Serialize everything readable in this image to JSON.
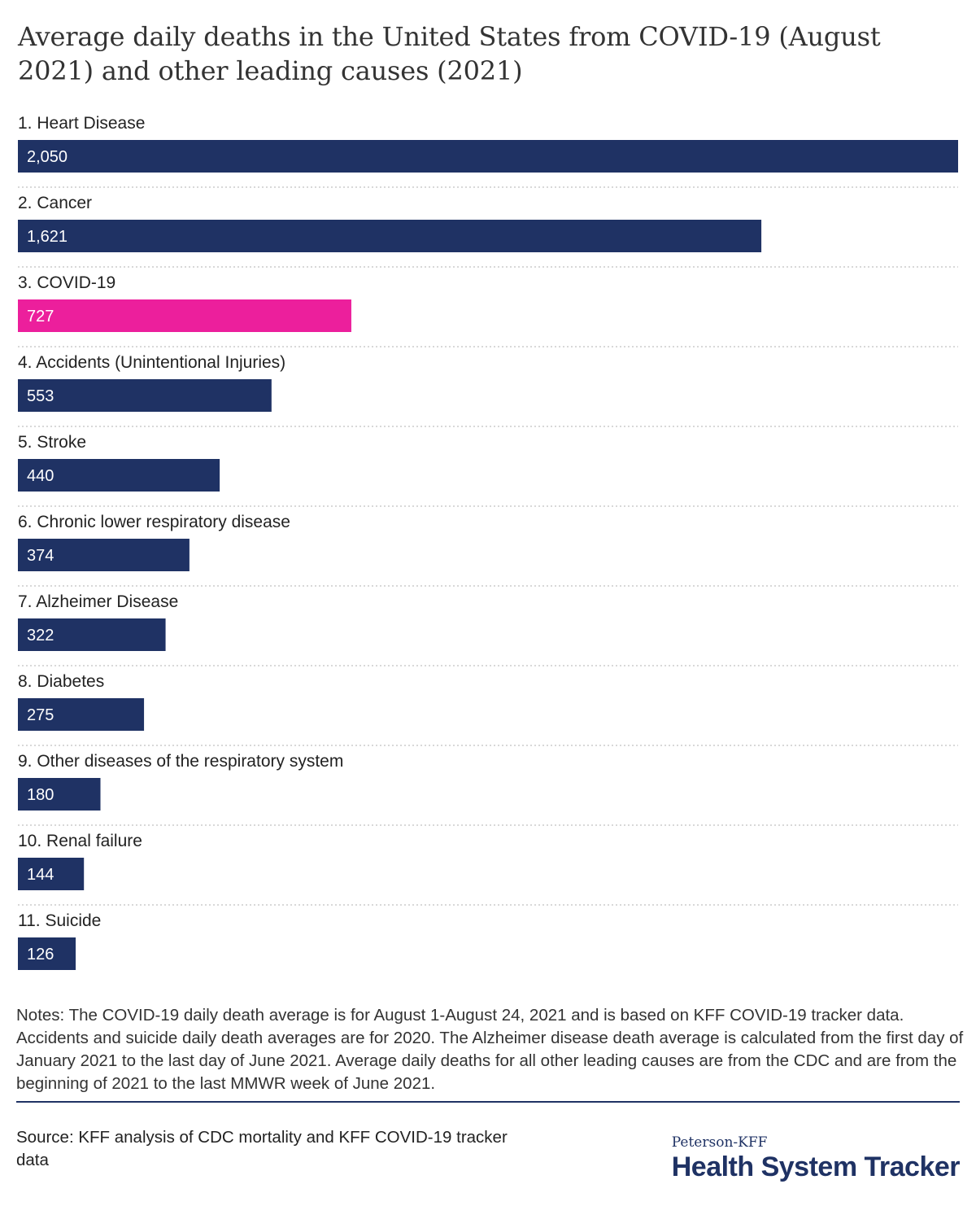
{
  "title": "Average daily deaths in the United States from COVID-19 (August 2021) and other leading causes (2021)",
  "chart_data": {
    "type": "bar",
    "orientation": "horizontal",
    "title": "Average daily deaths in the United States from COVID-19 (August 2021) and other leading causes (2021)",
    "xlabel": "",
    "ylabel": "",
    "xlim": [
      0,
      2050
    ],
    "grid": false,
    "categories": [
      "1. Heart Disease",
      "2. Cancer",
      "3. COVID-19",
      "4. Accidents (Unintentional Injuries)",
      "5. Stroke",
      "6. Chronic lower respiratory disease",
      "7. Alzheimer Disease",
      "8. Diabetes",
      "9. Other diseases of the respiratory system",
      "10. Renal failure",
      "11. Suicide"
    ],
    "values": [
      2050,
      1621,
      727,
      553,
      440,
      374,
      322,
      275,
      180,
      144,
      126
    ],
    "value_labels": [
      "2,050",
      "1,621",
      "727",
      "553",
      "440",
      "374",
      "322",
      "275",
      "180",
      "144",
      "126"
    ],
    "bar_colors": [
      "#1f3264",
      "#1f3264",
      "#ec1f9c",
      "#1f3264",
      "#1f3264",
      "#1f3264",
      "#1f3264",
      "#1f3264",
      "#1f3264",
      "#1f3264",
      "#1f3264"
    ]
  },
  "colors": {
    "bar_default": "#1f3264",
    "bar_highlight": "#ec1f9c",
    "separator": "#cccccc",
    "rule": "#1f3264"
  },
  "notes": "Notes: The COVID-19 daily death average is for August 1-August 24, 2021 and is based on KFF COVID-19 tracker data. Accidents and suicide daily death averages  are for 2020. The Alzheimer disease death average is calculated from the first day of January 2021 to the last day of June 2021.  Average daily deaths for all other leading causes are from the CDC and are from the beginning of 2021 to the last MMWR  week of June 2021.",
  "source": "Source: KFF analysis of CDC mortality and KFF COVID-19 tracker data",
  "logo": {
    "subtitle": "Peterson-KFF",
    "title": "Health System Tracker"
  }
}
